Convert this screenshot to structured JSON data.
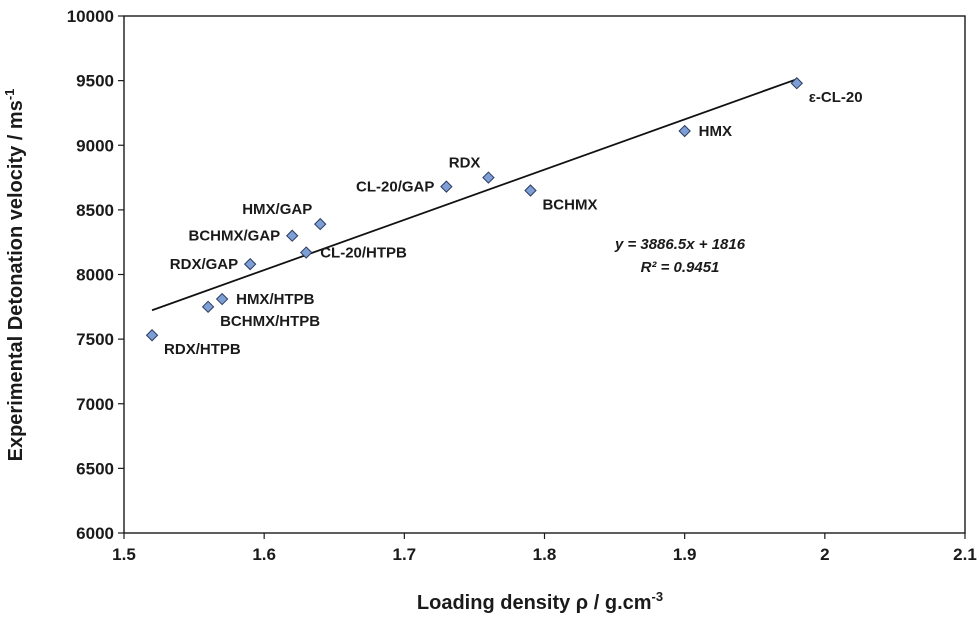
{
  "chart_data": {
    "type": "scatter",
    "xlabel": "Loading density ρ / g.cm",
    "xlabel_sup": "-3",
    "ylabel": "Experimental Detonation velocity / ms",
    "ylabel_sup": "-1",
    "xlim": [
      1.5,
      2.1
    ],
    "ylim": [
      6000,
      10000
    ],
    "x_ticks": [
      1.5,
      1.6,
      1.7,
      1.8,
      1.9,
      2.0,
      2.1
    ],
    "x_tick_labels": [
      "1.5",
      "1.6",
      "1.7",
      "1.8",
      "1.9",
      "2",
      "2.1"
    ],
    "y_ticks": [
      6000,
      6500,
      7000,
      7500,
      8000,
      8500,
      9000,
      9500,
      10000
    ],
    "y_tick_labels": [
      "6000",
      "6500",
      "7000",
      "7500",
      "8000",
      "8500",
      "9000",
      "9500",
      "10000"
    ],
    "grid": false,
    "legend": false,
    "marker": "diamond",
    "marker_color": "#7e9fd6",
    "marker_edge": "#2a3b5e",
    "points": [
      {
        "label": "ε-CL-20",
        "x": 1.98,
        "y": 9480,
        "label_pos": "right-below"
      },
      {
        "label": "HMX",
        "x": 1.9,
        "y": 9110,
        "label_pos": "right"
      },
      {
        "label": "RDX",
        "x": 1.76,
        "y": 8750,
        "label_pos": "left-above"
      },
      {
        "label": "BCHMX",
        "x": 1.79,
        "y": 8650,
        "label_pos": "right-below"
      },
      {
        "label": "CL-20/GAP",
        "x": 1.73,
        "y": 8680,
        "label_pos": "left"
      },
      {
        "label": "HMX/GAP",
        "x": 1.64,
        "y": 8390,
        "label_pos": "left-above"
      },
      {
        "label": "BCHMX/GAP",
        "x": 1.62,
        "y": 8300,
        "label_pos": "left"
      },
      {
        "label": "CL-20/HTPB",
        "x": 1.63,
        "y": 8170,
        "label_pos": "right"
      },
      {
        "label": "RDX/GAP",
        "x": 1.59,
        "y": 8080,
        "label_pos": "left"
      },
      {
        "label": "HMX/HTPB",
        "x": 1.57,
        "y": 7810,
        "label_pos": "right"
      },
      {
        "label": "BCHMX/HTPB",
        "x": 1.56,
        "y": 7750,
        "label_pos": "right-below"
      },
      {
        "label": "RDX/HTPB",
        "x": 1.52,
        "y": 7530,
        "label_pos": "right-below"
      }
    ],
    "trendline": {
      "slope": 3886.5,
      "intercept": 1816,
      "x_from": 1.52,
      "x_to": 1.98
    },
    "annotations": [
      "y = 3886.5x + 1816",
      "R² = 0.9451"
    ]
  }
}
